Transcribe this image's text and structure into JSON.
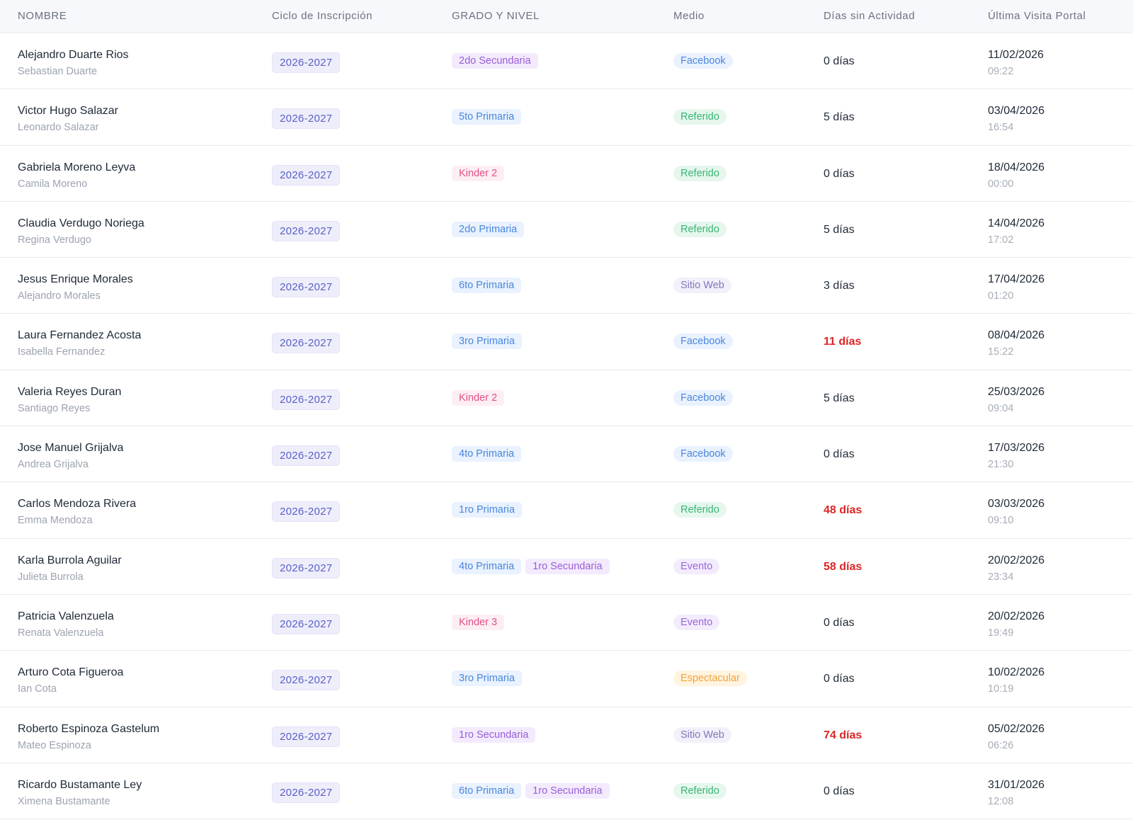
{
  "headers": {
    "nombre": "NOMBRE",
    "ciclo": "Ciclo de Inscripción",
    "grado": "GRADO Y NIVEL",
    "medio": "Medio",
    "dias": "Días sin Actividad",
    "visita": "Última Visita Portal"
  },
  "rows": [
    {
      "name": "Alejandro Duarte Rios",
      "student": "Sebastian Duarte",
      "cycle": "2026-2027",
      "grades": [
        {
          "label": "2do Secundaria",
          "color": "purple"
        }
      ],
      "medio": {
        "label": "Facebook",
        "kind": "facebook"
      },
      "days": "0 días",
      "alert": false,
      "date": "11/02/2026",
      "time": "09:22"
    },
    {
      "name": "Victor Hugo Salazar",
      "student": "Leonardo Salazar",
      "cycle": "2026-2027",
      "grades": [
        {
          "label": "5to Primaria",
          "color": "blue"
        }
      ],
      "medio": {
        "label": "Referido",
        "kind": "referido"
      },
      "days": "5 días",
      "alert": false,
      "date": "03/04/2026",
      "time": "16:54"
    },
    {
      "name": "Gabriela Moreno Leyva",
      "student": "Camila Moreno",
      "cycle": "2026-2027",
      "grades": [
        {
          "label": "Kinder 2",
          "color": "pink"
        }
      ],
      "medio": {
        "label": "Referido",
        "kind": "referido"
      },
      "days": "0 días",
      "alert": false,
      "date": "18/04/2026",
      "time": "00:00"
    },
    {
      "name": "Claudia Verdugo Noriega",
      "student": "Regina Verdugo",
      "cycle": "2026-2027",
      "grades": [
        {
          "label": "2do Primaria",
          "color": "blue"
        }
      ],
      "medio": {
        "label": "Referido",
        "kind": "referido"
      },
      "days": "5 días",
      "alert": false,
      "date": "14/04/2026",
      "time": "17:02"
    },
    {
      "name": "Jesus Enrique Morales",
      "student": "Alejandro Morales",
      "cycle": "2026-2027",
      "grades": [
        {
          "label": "6to Primaria",
          "color": "blue"
        }
      ],
      "medio": {
        "label": "Sitio Web",
        "kind": "sitio"
      },
      "days": "3 días",
      "alert": false,
      "date": "17/04/2026",
      "time": "01:20"
    },
    {
      "name": "Laura Fernandez Acosta",
      "student": "Isabella Fernandez",
      "cycle": "2026-2027",
      "grades": [
        {
          "label": "3ro Primaria",
          "color": "blue"
        }
      ],
      "medio": {
        "label": "Facebook",
        "kind": "facebook"
      },
      "days": "11 días",
      "alert": true,
      "date": "08/04/2026",
      "time": "15:22"
    },
    {
      "name": "Valeria Reyes Duran",
      "student": "Santiago Reyes",
      "cycle": "2026-2027",
      "grades": [
        {
          "label": "Kinder 2",
          "color": "pink"
        }
      ],
      "medio": {
        "label": "Facebook",
        "kind": "facebook"
      },
      "days": "5 días",
      "alert": false,
      "date": "25/03/2026",
      "time": "09:04"
    },
    {
      "name": "Jose Manuel Grijalva",
      "student": "Andrea Grijalva",
      "cycle": "2026-2027",
      "grades": [
        {
          "label": "4to Primaria",
          "color": "blue"
        }
      ],
      "medio": {
        "label": "Facebook",
        "kind": "facebook"
      },
      "days": "0 días",
      "alert": false,
      "date": "17/03/2026",
      "time": "21:30"
    },
    {
      "name": "Carlos Mendoza Rivera",
      "student": "Emma Mendoza",
      "cycle": "2026-2027",
      "grades": [
        {
          "label": "1ro Primaria",
          "color": "blue"
        }
      ],
      "medio": {
        "label": "Referido",
        "kind": "referido"
      },
      "days": "48 días",
      "alert": true,
      "date": "03/03/2026",
      "time": "09:10"
    },
    {
      "name": "Karla Burrola Aguilar",
      "student": "Julieta Burrola",
      "cycle": "2026-2027",
      "grades": [
        {
          "label": "4to Primaria",
          "color": "blue"
        },
        {
          "label": "1ro Secundaria",
          "color": "purple"
        }
      ],
      "medio": {
        "label": "Evento",
        "kind": "evento"
      },
      "days": "58 días",
      "alert": true,
      "date": "20/02/2026",
      "time": "23:34"
    },
    {
      "name": "Patricia Valenzuela",
      "student": "Renata Valenzuela",
      "cycle": "2026-2027",
      "grades": [
        {
          "label": "Kinder 3",
          "color": "pink"
        }
      ],
      "medio": {
        "label": "Evento",
        "kind": "evento"
      },
      "days": "0 días",
      "alert": false,
      "date": "20/02/2026",
      "time": "19:49"
    },
    {
      "name": "Arturo Cota Figueroa",
      "student": "Ian Cota",
      "cycle": "2026-2027",
      "grades": [
        {
          "label": "3ro Primaria",
          "color": "blue"
        }
      ],
      "medio": {
        "label": "Espectacular",
        "kind": "espectacular"
      },
      "days": "0 días",
      "alert": false,
      "date": "10/02/2026",
      "time": "10:19"
    },
    {
      "name": "Roberto Espinoza Gastelum",
      "student": "Mateo Espinoza",
      "cycle": "2026-2027",
      "grades": [
        {
          "label": "1ro Secundaria",
          "color": "purple"
        }
      ],
      "medio": {
        "label": "Sitio Web",
        "kind": "sitio"
      },
      "days": "74 días",
      "alert": true,
      "date": "05/02/2026",
      "time": "06:26"
    },
    {
      "name": "Ricardo Bustamante Ley",
      "student": "Ximena Bustamante",
      "cycle": "2026-2027",
      "grades": [
        {
          "label": "6to Primaria",
          "color": "blue"
        },
        {
          "label": "1ro Secundaria",
          "color": "purple"
        }
      ],
      "medio": {
        "label": "Referido",
        "kind": "referido"
      },
      "days": "0 días",
      "alert": false,
      "date": "31/01/2026",
      "time": "12:08"
    }
  ],
  "colors": {
    "alert": "#dc2626",
    "cycle_badge": "#5b5fc7",
    "header_bg": "#f6f8fb"
  }
}
